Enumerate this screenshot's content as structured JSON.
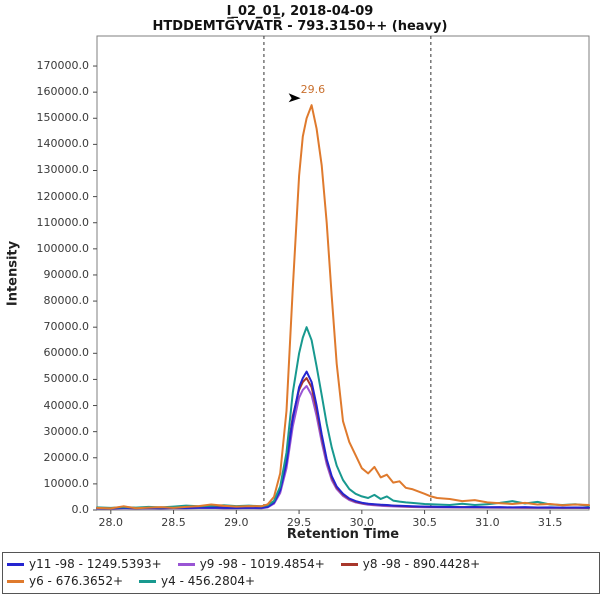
{
  "title": {
    "line1": "I_02_01, 2018-04-09",
    "line2": "HTDDEMTG̅YVA̅TR̅ - 793.3150++ (heavy)"
  },
  "axes": {
    "x": {
      "ticks": [
        {
          "v": 28.0,
          "t": "28.0"
        },
        {
          "v": 28.5,
          "t": "28.5"
        },
        {
          "v": 29.0,
          "t": "29.0"
        },
        {
          "v": 29.5,
          "t": "29.5"
        },
        {
          "v": 30.0,
          "t": "30.0"
        },
        {
          "v": 30.5,
          "t": "30.5"
        },
        {
          "v": 31.0,
          "t": "31.0"
        },
        {
          "v": 31.5,
          "t": "31.5"
        }
      ]
    },
    "y": {
      "ticks": [
        {
          "v": 0,
          "t": "0.0"
        },
        {
          "v": 10000,
          "t": "10000.0"
        },
        {
          "v": 20000,
          "t": "20000.0"
        },
        {
          "v": 30000,
          "t": "30000.0"
        },
        {
          "v": 40000,
          "t": "40000.0"
        },
        {
          "v": 50000,
          "t": "50000.0"
        },
        {
          "v": 60000,
          "t": "60000.0"
        },
        {
          "v": 70000,
          "t": "70000.0"
        },
        {
          "v": 80000,
          "t": "80000.0"
        },
        {
          "v": 90000,
          "t": "90000.0"
        },
        {
          "v": 100000,
          "t": "100000.0"
        },
        {
          "v": 110000,
          "t": "110000.0"
        },
        {
          "v": 120000,
          "t": "120000.0"
        },
        {
          "v": 130000,
          "t": "130000.0"
        },
        {
          "v": 140000,
          "t": "140000.0"
        },
        {
          "v": 150000,
          "t": "150000.0"
        },
        {
          "v": 160000,
          "t": "160000.0"
        },
        {
          "v": 170000,
          "t": "170000.0"
        }
      ]
    }
  },
  "colors": {
    "plot_border": "#7f7f7f",
    "tick": "#4a4a4a",
    "boundary_line": "#333333",
    "annotation_arrow": "#000000",
    "peak_label": "#c9702e"
  },
  "chart_data": {
    "type": "line",
    "title": "I_02_01, 2018-04-09",
    "subtitle": "HTDDEMTG̅YVA̅TR̅ - 793.3150++ (heavy)",
    "xlabel": "Retention Time",
    "ylabel": "Intensity",
    "xlim": [
      27.89,
      31.81
    ],
    "ylim": [
      0,
      181500
    ],
    "grid": false,
    "legend_position": "bottom",
    "peak_annotation": {
      "label": "29.6",
      "rt": 29.6,
      "intensity": 155000
    },
    "integration_boundaries": [
      29.22,
      30.55
    ],
    "series": [
      {
        "name": "y11 -98 - 1249.5393+",
        "color": "#2525d0",
        "points": [
          [
            27.89,
            700
          ],
          [
            28.0,
            600
          ],
          [
            28.1,
            800
          ],
          [
            28.2,
            650
          ],
          [
            28.3,
            750
          ],
          [
            28.4,
            700
          ],
          [
            28.5,
            800
          ],
          [
            28.6,
            750
          ],
          [
            28.7,
            850
          ],
          [
            28.8,
            900
          ],
          [
            28.9,
            800
          ],
          [
            29.0,
            750
          ],
          [
            29.1,
            850
          ],
          [
            29.2,
            800
          ],
          [
            29.25,
            1200
          ],
          [
            29.3,
            2800
          ],
          [
            29.35,
            7500
          ],
          [
            29.4,
            18000
          ],
          [
            29.45,
            35000
          ],
          [
            29.5,
            47000
          ],
          [
            29.53,
            50500
          ],
          [
            29.56,
            53000
          ],
          [
            29.6,
            49000
          ],
          [
            29.64,
            40000
          ],
          [
            29.68,
            29000
          ],
          [
            29.72,
            19500
          ],
          [
            29.76,
            13000
          ],
          [
            29.8,
            9000
          ],
          [
            29.85,
            6200
          ],
          [
            29.9,
            4400
          ],
          [
            29.95,
            3400
          ],
          [
            30.0,
            2800
          ],
          [
            30.05,
            2400
          ],
          [
            30.1,
            2200
          ],
          [
            30.15,
            2000
          ],
          [
            30.2,
            1900
          ],
          [
            30.25,
            1700
          ],
          [
            30.3,
            1600
          ],
          [
            30.4,
            1400
          ],
          [
            30.5,
            1300
          ],
          [
            30.6,
            1200
          ],
          [
            30.7,
            1150
          ],
          [
            30.8,
            1100
          ],
          [
            30.9,
            1150
          ],
          [
            31.0,
            1050
          ],
          [
            31.1,
            1100
          ],
          [
            31.2,
            1000
          ],
          [
            31.3,
            1100
          ],
          [
            31.4,
            950
          ],
          [
            31.5,
            1000
          ],
          [
            31.6,
            900
          ],
          [
            31.7,
            950
          ],
          [
            31.81,
            900
          ]
        ]
      },
      {
        "name": "y9 -98 - 1019.4854+",
        "color": "#9955d4",
        "points": [
          [
            27.89,
            600
          ],
          [
            28.0,
            550
          ],
          [
            28.1,
            700
          ],
          [
            28.2,
            600
          ],
          [
            28.3,
            650
          ],
          [
            28.4,
            600
          ],
          [
            28.5,
            700
          ],
          [
            28.6,
            650
          ],
          [
            28.7,
            750
          ],
          [
            28.8,
            800
          ],
          [
            28.9,
            700
          ],
          [
            29.0,
            650
          ],
          [
            29.1,
            750
          ],
          [
            29.2,
            700
          ],
          [
            29.25,
            1000
          ],
          [
            29.3,
            2400
          ],
          [
            29.35,
            6500
          ],
          [
            29.4,
            16000
          ],
          [
            29.45,
            32000
          ],
          [
            29.5,
            43000
          ],
          [
            29.53,
            46000
          ],
          [
            29.56,
            47500
          ],
          [
            29.6,
            44000
          ],
          [
            29.64,
            36000
          ],
          [
            29.68,
            26000
          ],
          [
            29.72,
            17500
          ],
          [
            29.76,
            11500
          ],
          [
            29.8,
            8000
          ],
          [
            29.85,
            5400
          ],
          [
            29.9,
            3800
          ],
          [
            29.95,
            2900
          ],
          [
            30.0,
            2400
          ],
          [
            30.05,
            2000
          ],
          [
            30.1,
            1800
          ],
          [
            30.15,
            1600
          ],
          [
            30.2,
            1500
          ],
          [
            30.3,
            1300
          ],
          [
            30.4,
            1150
          ],
          [
            30.5,
            1050
          ],
          [
            30.6,
            1000
          ],
          [
            30.8,
            950
          ],
          [
            31.0,
            900
          ],
          [
            31.2,
            850
          ],
          [
            31.4,
            800
          ],
          [
            31.6,
            800
          ],
          [
            31.81,
            750
          ]
        ]
      },
      {
        "name": "y8 -98 - 890.4428+",
        "color": "#a8372b",
        "points": [
          [
            27.89,
            800
          ],
          [
            28.0,
            700
          ],
          [
            28.1,
            900
          ],
          [
            28.2,
            750
          ],
          [
            28.3,
            850
          ],
          [
            28.4,
            800
          ],
          [
            28.5,
            900
          ],
          [
            28.6,
            850
          ],
          [
            28.7,
            950
          ],
          [
            28.8,
            1000
          ],
          [
            28.9,
            900
          ],
          [
            29.0,
            850
          ],
          [
            29.1,
            950
          ],
          [
            29.2,
            900
          ],
          [
            29.25,
            1300
          ],
          [
            29.3,
            3000
          ],
          [
            29.35,
            8000
          ],
          [
            29.4,
            19000
          ],
          [
            29.45,
            36000
          ],
          [
            29.5,
            46000
          ],
          [
            29.53,
            49000
          ],
          [
            29.56,
            50500
          ],
          [
            29.6,
            47000
          ],
          [
            29.64,
            38500
          ],
          [
            29.68,
            28000
          ],
          [
            29.72,
            19000
          ],
          [
            29.76,
            12500
          ],
          [
            29.8,
            8600
          ],
          [
            29.85,
            5900
          ],
          [
            29.9,
            4200
          ],
          [
            29.95,
            3200
          ],
          [
            30.0,
            2600
          ],
          [
            30.1,
            2100
          ],
          [
            30.2,
            1800
          ],
          [
            30.3,
            1550
          ],
          [
            30.4,
            1350
          ],
          [
            30.5,
            1250
          ],
          [
            30.6,
            1150
          ],
          [
            30.8,
            1050
          ],
          [
            31.0,
            1000
          ],
          [
            31.2,
            950
          ],
          [
            31.4,
            900
          ],
          [
            31.6,
            850
          ],
          [
            31.81,
            850
          ]
        ]
      },
      {
        "name": "y6 - 676.3652+",
        "color": "#df7a2d",
        "points": [
          [
            27.89,
            800
          ],
          [
            28.0,
            600
          ],
          [
            28.1,
            1400
          ],
          [
            28.2,
            700
          ],
          [
            28.3,
            900
          ],
          [
            28.4,
            1100
          ],
          [
            28.5,
            800
          ],
          [
            28.6,
            1200
          ],
          [
            28.7,
            1500
          ],
          [
            28.8,
            2100
          ],
          [
            28.9,
            1600
          ],
          [
            29.0,
            1300
          ],
          [
            29.1,
            1500
          ],
          [
            29.2,
            1400
          ],
          [
            29.25,
            2200
          ],
          [
            29.3,
            5000
          ],
          [
            29.35,
            14000
          ],
          [
            29.4,
            38000
          ],
          [
            29.45,
            85000
          ],
          [
            29.5,
            128000
          ],
          [
            29.53,
            143000
          ],
          [
            29.56,
            150000
          ],
          [
            29.6,
            155000
          ],
          [
            29.64,
            146000
          ],
          [
            29.68,
            132000
          ],
          [
            29.72,
            110000
          ],
          [
            29.76,
            82000
          ],
          [
            29.8,
            56000
          ],
          [
            29.85,
            34000
          ],
          [
            29.9,
            26000
          ],
          [
            29.95,
            21000
          ],
          [
            30.0,
            16000
          ],
          [
            30.05,
            14000
          ],
          [
            30.1,
            16500
          ],
          [
            30.15,
            12500
          ],
          [
            30.2,
            13500
          ],
          [
            30.25,
            10500
          ],
          [
            30.3,
            11000
          ],
          [
            30.35,
            8500
          ],
          [
            30.4,
            8000
          ],
          [
            30.5,
            6200
          ],
          [
            30.55,
            5200
          ],
          [
            30.6,
            4600
          ],
          [
            30.7,
            4200
          ],
          [
            30.8,
            3400
          ],
          [
            30.9,
            3800
          ],
          [
            31.0,
            2900
          ],
          [
            31.1,
            2600
          ],
          [
            31.2,
            2300
          ],
          [
            31.3,
            2700
          ],
          [
            31.4,
            2100
          ],
          [
            31.5,
            2300
          ],
          [
            31.6,
            1800
          ],
          [
            31.7,
            2100
          ],
          [
            31.81,
            1900
          ]
        ]
      },
      {
        "name": "y4 - 456.2804+",
        "color": "#18998f",
        "points": [
          [
            27.89,
            1000
          ],
          [
            28.0,
            800
          ],
          [
            28.1,
            1100
          ],
          [
            28.2,
            900
          ],
          [
            28.3,
            1200
          ],
          [
            28.4,
            1000
          ],
          [
            28.5,
            1300
          ],
          [
            28.6,
            1700
          ],
          [
            28.7,
            1400
          ],
          [
            28.8,
            1600
          ],
          [
            28.9,
            1800
          ],
          [
            29.0,
            1500
          ],
          [
            29.1,
            1700
          ],
          [
            29.2,
            1400
          ],
          [
            29.25,
            1800
          ],
          [
            29.3,
            3500
          ],
          [
            29.35,
            9000
          ],
          [
            29.4,
            22000
          ],
          [
            29.45,
            45000
          ],
          [
            29.5,
            60000
          ],
          [
            29.53,
            66000
          ],
          [
            29.56,
            70000
          ],
          [
            29.6,
            65000
          ],
          [
            29.64,
            55000
          ],
          [
            29.68,
            44000
          ],
          [
            29.72,
            33000
          ],
          [
            29.76,
            24000
          ],
          [
            29.8,
            17000
          ],
          [
            29.85,
            11500
          ],
          [
            29.9,
            8000
          ],
          [
            29.95,
            6200
          ],
          [
            30.0,
            5200
          ],
          [
            30.05,
            4600
          ],
          [
            30.1,
            5800
          ],
          [
            30.15,
            4200
          ],
          [
            30.2,
            5200
          ],
          [
            30.25,
            3600
          ],
          [
            30.3,
            3200
          ],
          [
            30.35,
            2900
          ],
          [
            30.4,
            2700
          ],
          [
            30.5,
            2300
          ],
          [
            30.55,
            2200
          ],
          [
            30.6,
            2100
          ],
          [
            30.7,
            1900
          ],
          [
            30.8,
            2400
          ],
          [
            30.9,
            1900
          ],
          [
            31.0,
            2200
          ],
          [
            31.1,
            2700
          ],
          [
            31.2,
            3400
          ],
          [
            31.3,
            2500
          ],
          [
            31.4,
            3100
          ],
          [
            31.5,
            2100
          ],
          [
            31.6,
            1900
          ],
          [
            31.7,
            2200
          ],
          [
            31.81,
            1700
          ]
        ]
      }
    ]
  }
}
